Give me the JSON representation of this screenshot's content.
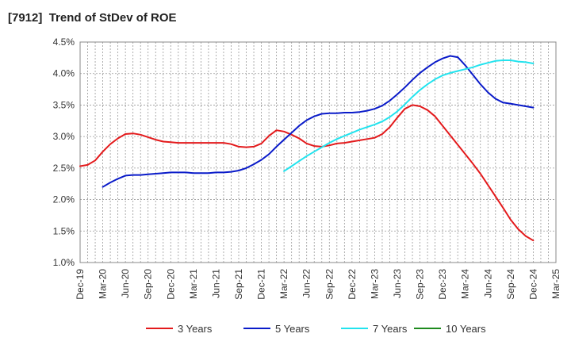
{
  "chart_data": {
    "type": "line",
    "title": "[7912]  Trend of StDev of ROE",
    "xlabel": "",
    "ylabel": "",
    "x_ticks": [
      "Dec-19",
      "Mar-20",
      "Jun-20",
      "Sep-20",
      "Dec-20",
      "Mar-21",
      "Jun-21",
      "Sep-21",
      "Dec-21",
      "Mar-22",
      "Jun-22",
      "Sep-22",
      "Dec-22",
      "Mar-23",
      "Jun-23",
      "Sep-23",
      "Dec-23",
      "Mar-24",
      "Jun-24",
      "Sep-24",
      "Dec-24",
      "Mar-25"
    ],
    "y_ticks": [
      "1.0%",
      "1.5%",
      "2.0%",
      "2.5%",
      "3.0%",
      "3.5%",
      "4.0%",
      "4.5%"
    ],
    "ylim": [
      1.0,
      4.5
    ],
    "grid": true,
    "legend_position": "bottom",
    "series": [
      {
        "name": "3 Years",
        "color": "#e31a1c",
        "points": [
          [
            "Dec-19",
            2.53
          ],
          [
            "Jan-20",
            2.55
          ],
          [
            "Feb-20",
            2.62
          ],
          [
            "Mar-20",
            2.76
          ],
          [
            "Apr-20",
            2.88
          ],
          [
            "May-20",
            2.97
          ],
          [
            "Jun-20",
            3.04
          ],
          [
            "Jul-20",
            3.05
          ],
          [
            "Aug-20",
            3.03
          ],
          [
            "Sep-20",
            2.99
          ],
          [
            "Oct-20",
            2.95
          ],
          [
            "Nov-20",
            2.92
          ],
          [
            "Dec-20",
            2.91
          ],
          [
            "Jan-21",
            2.9
          ],
          [
            "Feb-21",
            2.9
          ],
          [
            "Mar-21",
            2.9
          ],
          [
            "Apr-21",
            2.9
          ],
          [
            "May-21",
            2.9
          ],
          [
            "Jun-21",
            2.9
          ],
          [
            "Jul-21",
            2.9
          ],
          [
            "Aug-21",
            2.88
          ],
          [
            "Sep-21",
            2.84
          ],
          [
            "Oct-21",
            2.83
          ],
          [
            "Nov-21",
            2.84
          ],
          [
            "Dec-21",
            2.89
          ],
          [
            "Jan-22",
            3.01
          ],
          [
            "Feb-22",
            3.1
          ],
          [
            "Mar-22",
            3.08
          ],
          [
            "Apr-22",
            3.03
          ],
          [
            "May-22",
            2.97
          ],
          [
            "Jun-22",
            2.89
          ],
          [
            "Jul-22",
            2.85
          ],
          [
            "Aug-22",
            2.84
          ],
          [
            "Sep-22",
            2.86
          ],
          [
            "Oct-22",
            2.89
          ],
          [
            "Nov-22",
            2.9
          ],
          [
            "Dec-22",
            2.92
          ],
          [
            "Jan-23",
            2.94
          ],
          [
            "Feb-23",
            2.96
          ],
          [
            "Mar-23",
            2.98
          ],
          [
            "Apr-23",
            3.04
          ],
          [
            "May-23",
            3.15
          ],
          [
            "Jun-23",
            3.3
          ],
          [
            "Jul-23",
            3.44
          ],
          [
            "Aug-23",
            3.5
          ],
          [
            "Sep-23",
            3.48
          ],
          [
            "Oct-23",
            3.42
          ],
          [
            "Nov-23",
            3.32
          ],
          [
            "Dec-23",
            3.17
          ],
          [
            "Jan-24",
            3.02
          ],
          [
            "Feb-24",
            2.87
          ],
          [
            "Mar-24",
            2.72
          ],
          [
            "Apr-24",
            2.57
          ],
          [
            "May-24",
            2.41
          ],
          [
            "Jun-24",
            2.23
          ],
          [
            "Jul-24",
            2.05
          ],
          [
            "Aug-24",
            1.87
          ],
          [
            "Sep-24",
            1.68
          ],
          [
            "Oct-24",
            1.53
          ],
          [
            "Nov-24",
            1.42
          ],
          [
            "Dec-24",
            1.35
          ]
        ]
      },
      {
        "name": "5 Years",
        "color": "#0a1bc9",
        "points": [
          [
            "Mar-20",
            2.2
          ],
          [
            "Apr-20",
            2.27
          ],
          [
            "May-20",
            2.33
          ],
          [
            "Jun-20",
            2.38
          ],
          [
            "Jul-20",
            2.39
          ],
          [
            "Aug-20",
            2.39
          ],
          [
            "Sep-20",
            2.4
          ],
          [
            "Oct-20",
            2.41
          ],
          [
            "Nov-20",
            2.42
          ],
          [
            "Dec-20",
            2.43
          ],
          [
            "Jan-21",
            2.43
          ],
          [
            "Feb-21",
            2.43
          ],
          [
            "Mar-21",
            2.42
          ],
          [
            "Apr-21",
            2.42
          ],
          [
            "May-21",
            2.42
          ],
          [
            "Jun-21",
            2.43
          ],
          [
            "Jul-21",
            2.43
          ],
          [
            "Aug-21",
            2.44
          ],
          [
            "Sep-21",
            2.46
          ],
          [
            "Oct-21",
            2.5
          ],
          [
            "Nov-21",
            2.56
          ],
          [
            "Dec-21",
            2.63
          ],
          [
            "Jan-22",
            2.72
          ],
          [
            "Feb-22",
            2.84
          ],
          [
            "Mar-22",
            2.95
          ],
          [
            "Apr-22",
            3.06
          ],
          [
            "May-22",
            3.17
          ],
          [
            "Jun-22",
            3.26
          ],
          [
            "Jul-22",
            3.32
          ],
          [
            "Aug-22",
            3.36
          ],
          [
            "Sep-22",
            3.37
          ],
          [
            "Oct-22",
            3.37
          ],
          [
            "Nov-22",
            3.38
          ],
          [
            "Dec-22",
            3.38
          ],
          [
            "Jan-23",
            3.39
          ],
          [
            "Feb-23",
            3.41
          ],
          [
            "Mar-23",
            3.44
          ],
          [
            "Apr-23",
            3.49
          ],
          [
            "May-23",
            3.57
          ],
          [
            "Jun-23",
            3.67
          ],
          [
            "Jul-23",
            3.78
          ],
          [
            "Aug-23",
            3.9
          ],
          [
            "Sep-23",
            4.01
          ],
          [
            "Oct-23",
            4.1
          ],
          [
            "Nov-23",
            4.18
          ],
          [
            "Dec-23",
            4.24
          ],
          [
            "Jan-24",
            4.28
          ],
          [
            "Feb-24",
            4.26
          ],
          [
            "Mar-24",
            4.13
          ],
          [
            "Apr-24",
            3.98
          ],
          [
            "May-24",
            3.83
          ],
          [
            "Jun-24",
            3.7
          ],
          [
            "Jul-24",
            3.6
          ],
          [
            "Aug-24",
            3.54
          ],
          [
            "Sep-24",
            3.52
          ],
          [
            "Oct-24",
            3.5
          ],
          [
            "Nov-24",
            3.48
          ],
          [
            "Dec-24",
            3.46
          ]
        ]
      },
      {
        "name": "7 Years",
        "color": "#22e3ee",
        "points": [
          [
            "Mar-22",
            2.45
          ],
          [
            "Apr-22",
            2.53
          ],
          [
            "May-22",
            2.61
          ],
          [
            "Jun-22",
            2.69
          ],
          [
            "Jul-22",
            2.76
          ],
          [
            "Aug-22",
            2.83
          ],
          [
            "Sep-22",
            2.9
          ],
          [
            "Oct-22",
            2.96
          ],
          [
            "Nov-22",
            3.01
          ],
          [
            "Dec-22",
            3.06
          ],
          [
            "Jan-23",
            3.11
          ],
          [
            "Feb-23",
            3.15
          ],
          [
            "Mar-23",
            3.19
          ],
          [
            "Apr-23",
            3.24
          ],
          [
            "May-23",
            3.31
          ],
          [
            "Jun-23",
            3.4
          ],
          [
            "Jul-23",
            3.51
          ],
          [
            "Aug-23",
            3.63
          ],
          [
            "Sep-23",
            3.74
          ],
          [
            "Oct-23",
            3.83
          ],
          [
            "Nov-23",
            3.91
          ],
          [
            "Dec-23",
            3.97
          ],
          [
            "Jan-24",
            4.01
          ],
          [
            "Feb-24",
            4.04
          ],
          [
            "Mar-24",
            4.07
          ],
          [
            "Apr-24",
            4.1
          ],
          [
            "May-24",
            4.14
          ],
          [
            "Jun-24",
            4.17
          ],
          [
            "Jul-24",
            4.2
          ],
          [
            "Aug-24",
            4.21
          ],
          [
            "Sep-24",
            4.21
          ],
          [
            "Oct-24",
            4.19
          ],
          [
            "Nov-24",
            4.18
          ],
          [
            "Dec-24",
            4.16
          ]
        ]
      },
      {
        "name": "10 Years",
        "color": "#1e8a1e",
        "points": []
      }
    ]
  }
}
